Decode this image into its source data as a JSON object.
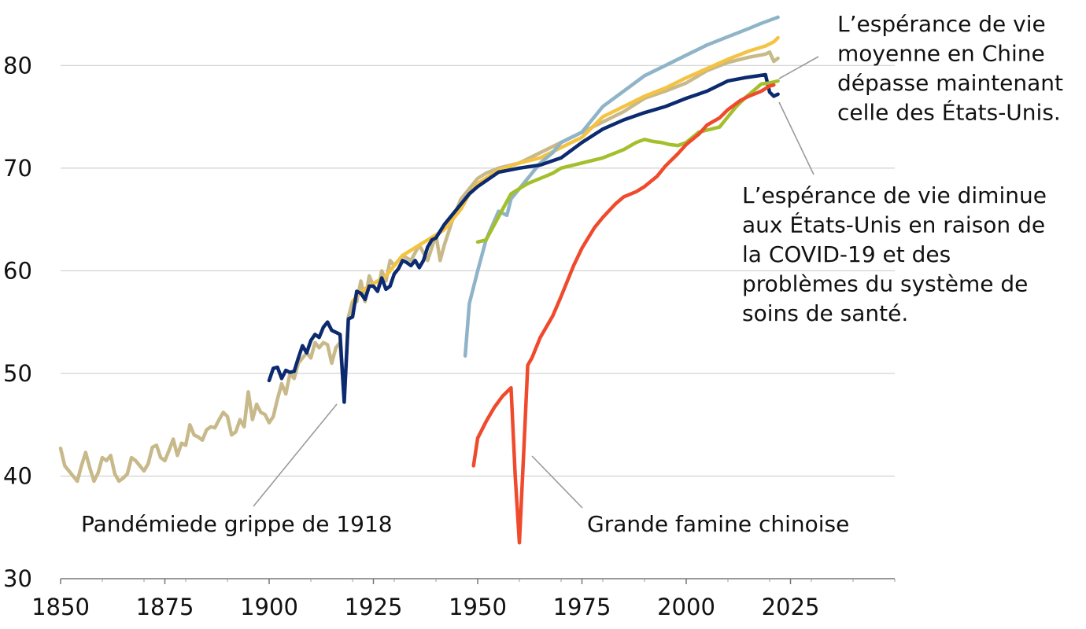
{
  "chart_data": {
    "type": "line",
    "title": "",
    "xlabel": "",
    "ylabel": "",
    "xlim": [
      1850,
      2050
    ],
    "ylim": [
      30,
      85
    ],
    "x_ticks": [
      1850,
      1875,
      1900,
      1925,
      1950,
      1975,
      2000,
      2025
    ],
    "x_tick_labels": [
      "1850",
      "1875",
      "1900",
      "1925",
      "1950",
      "1975",
      "2000",
      "2025"
    ],
    "y_ticks": [
      30,
      40,
      50,
      60,
      70,
      80
    ],
    "y_tick_labels": [
      "30",
      "40",
      "50",
      "60",
      "70",
      "80"
    ],
    "grid": "horizontal",
    "legend": "none",
    "series": [
      {
        "color": "#c8b98a",
        "x": [
          1850,
          1851,
          1852,
          1853,
          1854,
          1855,
          1856,
          1857,
          1858,
          1859,
          1860,
          1861,
          1862,
          1863,
          1864,
          1865,
          1866,
          1867,
          1868,
          1869,
          1870,
          1871,
          1872,
          1873,
          1874,
          1875,
          1876,
          1877,
          1878,
          1879,
          1880,
          1881,
          1882,
          1883,
          1884,
          1885,
          1886,
          1887,
          1888,
          1889,
          1890,
          1891,
          1892,
          1893,
          1894,
          1895,
          1896,
          1897,
          1898,
          1899,
          1900,
          1901,
          1902,
          1903,
          1904,
          1905,
          1906,
          1907,
          1908,
          1909,
          1910,
          1911,
          1912,
          1913,
          1914,
          1915,
          1916,
          1917,
          1918,
          1919,
          1920,
          1921,
          1922,
          1923,
          1924,
          1925,
          1926,
          1927,
          1928,
          1929,
          1930,
          1932,
          1934,
          1936,
          1938,
          1940,
          1941,
          1942,
          1944,
          1946,
          1948,
          1950,
          1952,
          1955,
          1960,
          1965,
          1970,
          1975,
          1980,
          1985,
          1990,
          1995,
          2000,
          2005,
          2010,
          2015,
          2019,
          2020,
          2021,
          2022
        ],
        "y": [
          42.7,
          41.0,
          40.5,
          40.0,
          39.5,
          41.0,
          42.3,
          40.8,
          39.5,
          40.3,
          41.8,
          41.5,
          42.0,
          40.2,
          39.5,
          39.8,
          40.2,
          41.8,
          41.5,
          41.0,
          40.5,
          41.2,
          42.8,
          43.0,
          41.8,
          41.5,
          42.5,
          43.6,
          42.0,
          43.2,
          43.0,
          45.0,
          44.0,
          43.8,
          43.5,
          44.5,
          44.8,
          44.7,
          45.5,
          46.2,
          45.8,
          44.0,
          44.3,
          45.5,
          44.8,
          48.2,
          45.5,
          47.0,
          46.2,
          46.0,
          45.2,
          45.8,
          47.5,
          49.0,
          48.0,
          50.0,
          49.5,
          51.0,
          51.5,
          52.0,
          51.5,
          53.0,
          52.5,
          53.0,
          52.8,
          51.0,
          52.5,
          53.0,
          47.5,
          55.5,
          57.0,
          57.0,
          59.0,
          57.0,
          59.5,
          58.5,
          58.0,
          60.0,
          59.0,
          61.0,
          60.5,
          61.5,
          61.0,
          62.5,
          61.0,
          63.5,
          61.0,
          62.5,
          65.0,
          67.0,
          68.0,
          69.0,
          69.5,
          70.0,
          70.5,
          71.5,
          72.5,
          73.5,
          74.5,
          75.5,
          76.8,
          77.5,
          78.3,
          79.5,
          80.3,
          80.8,
          81.1,
          81.3,
          80.4,
          80.7
        ]
      },
      {
        "color": "#f5c342",
        "x": [
          1920,
          1922,
          1924,
          1926,
          1928,
          1930,
          1932,
          1934,
          1936,
          1938,
          1940,
          1942,
          1944,
          1946,
          1948,
          1950,
          1955,
          1960,
          1965,
          1970,
          1975,
          1980,
          1985,
          1990,
          1995,
          2000,
          2005,
          2010,
          2015,
          2019,
          2020,
          2021,
          2022
        ],
        "y": [
          57.0,
          58.0,
          58.5,
          59.0,
          59.5,
          60.5,
          61.5,
          62.0,
          62.5,
          63.0,
          63.5,
          64.0,
          65.0,
          66.0,
          67.5,
          68.5,
          69.8,
          70.5,
          71.0,
          72.0,
          73.0,
          75.0,
          76.0,
          77.0,
          77.8,
          78.8,
          79.7,
          80.6,
          81.4,
          81.9,
          82.1,
          82.3,
          82.7
        ]
      },
      {
        "color": "#8fb4c8",
        "x": [
          1947,
          1948,
          1950,
          1952,
          1955,
          1957,
          1958,
          1960,
          1962,
          1965,
          1968,
          1970,
          1975,
          1980,
          1985,
          1990,
          1995,
          2000,
          2005,
          2010,
          2015,
          2018,
          2020,
          2022
        ],
        "y": [
          51.7,
          56.8,
          60.0,
          63.0,
          65.8,
          65.4,
          67.0,
          68.0,
          69.0,
          70.5,
          71.5,
          72.5,
          73.5,
          76.0,
          77.5,
          79.0,
          80.0,
          81.0,
          82.0,
          82.8,
          83.6,
          84.1,
          84.4,
          84.7
        ]
      },
      {
        "color": "#0b2a6f",
        "x": [
          1900,
          1901,
          1902,
          1903,
          1904,
          1905,
          1906,
          1907,
          1908,
          1909,
          1910,
          1911,
          1912,
          1913,
          1914,
          1915,
          1916,
          1917,
          1918,
          1919,
          1920,
          1921,
          1922,
          1923,
          1924,
          1925,
          1926,
          1927,
          1928,
          1929,
          1930,
          1931,
          1932,
          1933,
          1934,
          1935,
          1936,
          1937,
          1938,
          1939,
          1940,
          1942,
          1944,
          1946,
          1948,
          1950,
          1955,
          1960,
          1965,
          1970,
          1975,
          1980,
          1985,
          1990,
          1995,
          2000,
          2005,
          2010,
          2014,
          2019,
          2020,
          2021,
          2022
        ],
        "y": [
          49.3,
          50.5,
          50.6,
          49.5,
          50.3,
          50.1,
          50.2,
          51.5,
          52.7,
          52.0,
          53.2,
          53.8,
          53.5,
          54.5,
          55.0,
          54.2,
          54.0,
          53.8,
          47.2,
          55.3,
          55.5,
          58.0,
          57.8,
          57.2,
          58.5,
          58.5,
          58.0,
          59.3,
          58.2,
          58.5,
          59.7,
          60.2,
          61.0,
          60.8,
          60.5,
          61.0,
          60.3,
          61.0,
          62.3,
          63.0,
          63.2,
          64.5,
          65.5,
          66.5,
          67.5,
          68.2,
          69.6,
          70.0,
          70.3,
          71.0,
          72.5,
          73.8,
          74.7,
          75.4,
          76.0,
          76.8,
          77.5,
          78.5,
          78.8,
          79.1,
          77.4,
          77.0,
          77.2
        ]
      },
      {
        "color": "#a3bf2c",
        "x": [
          1950,
          1952,
          1954,
          1956,
          1958,
          1960,
          1962,
          1965,
          1968,
          1970,
          1975,
          1980,
          1985,
          1988,
          1990,
          1992,
          1994,
          1996,
          1998,
          2000,
          2003,
          2005,
          2008,
          2010,
          2012,
          2014,
          2016,
          2018,
          2020,
          2022
        ],
        "y": [
          62.8,
          63.0,
          64.5,
          66.0,
          67.5,
          68.0,
          68.5,
          69.0,
          69.5,
          70.0,
          70.5,
          71.0,
          71.8,
          72.5,
          72.8,
          72.6,
          72.5,
          72.3,
          72.2,
          72.5,
          73.5,
          73.7,
          74.0,
          75.0,
          76.0,
          76.8,
          77.5,
          78.2,
          78.3,
          78.5
        ]
      },
      {
        "color": "#f04a2d",
        "x": [
          1949,
          1950,
          1952,
          1954,
          1956,
          1958,
          1959,
          1960,
          1961,
          1962,
          1963,
          1965,
          1968,
          1970,
          1973,
          1975,
          1978,
          1980,
          1983,
          1985,
          1988,
          1990,
          1993,
          1995,
          1998,
          2000,
          2003,
          2005,
          2008,
          2010,
          2013,
          2015,
          2018,
          2020,
          2021
        ],
        "y": [
          41.0,
          43.7,
          45.3,
          46.7,
          47.8,
          48.6,
          40.0,
          33.5,
          42.0,
          50.8,
          51.5,
          53.5,
          55.6,
          57.5,
          60.5,
          62.2,
          64.2,
          65.2,
          66.5,
          67.2,
          67.7,
          68.2,
          69.2,
          70.2,
          71.4,
          72.3,
          73.3,
          74.2,
          74.9,
          75.7,
          76.6,
          77.0,
          77.5,
          78.0,
          78.1
        ]
      }
    ],
    "annotations": [
      {
        "lines": [
          "L’espérance de vie",
          "moyenne en Chine",
          "dépasse maintenant",
          "celle des États-Unis."
        ]
      },
      {
        "lines": [
          "L’espérance de vie diminue",
          "aux États-Unis en raison de",
          "la COVID-19 et des",
          "problèmes du système de",
          "soins de santé."
        ]
      },
      {
        "lines": [
          "Pandémiede grippe de 1918"
        ]
      },
      {
        "lines": [
          "Grande famine chinoise"
        ]
      }
    ]
  }
}
